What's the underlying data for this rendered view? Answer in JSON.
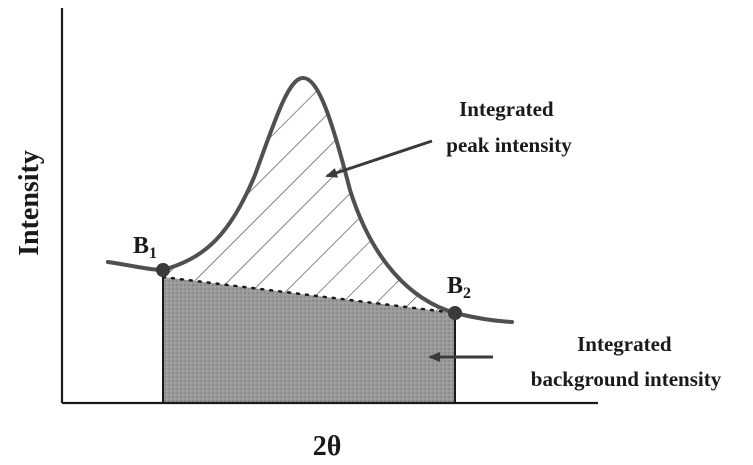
{
  "diagram": {
    "axes": {
      "y_label": "Intensity",
      "x_label": "2θ"
    },
    "points": {
      "b1": {
        "letter": "B",
        "sub": "1"
      },
      "b2": {
        "letter": "B",
        "sub": "2"
      }
    },
    "annotations": {
      "peak": {
        "line1": "Integrated",
        "line2": "peak intensity"
      },
      "background": {
        "line1": "Integrated",
        "line2": "background intensity"
      }
    },
    "colors": {
      "curve": "#505050",
      "axis": "#1a1a1a",
      "background_fill": "#8f8f8f",
      "hatch": "#3a3a3a",
      "point": "#3a3a3a"
    }
  }
}
